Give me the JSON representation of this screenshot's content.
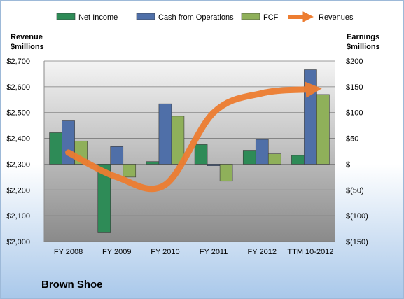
{
  "chart_data": {
    "type": "bar",
    "company": "Brown Shoe",
    "categories": [
      "FY 2008",
      "FY 2009",
      "FY 2010",
      "FY 2011",
      "FY 2012",
      "TTM 10-2012"
    ],
    "left_axis": {
      "title_line1": "Revenue",
      "title_line2": "$millions",
      "ylim": [
        2000,
        2700
      ],
      "ticks": [
        "$2,000",
        "$2,100",
        "$2,200",
        "$2,300",
        "$2,400",
        "$2,500",
        "$2,600",
        "$2,700"
      ]
    },
    "right_axis": {
      "title_line1": "Earnings",
      "title_line2": "$millions",
      "ylim": [
        -150,
        200
      ],
      "ticks": [
        "$(150)",
        "$(100)",
        "$(50)",
        "$-",
        "$50",
        "$100",
        "$150",
        "$200"
      ]
    },
    "series": [
      {
        "name": "Net Income",
        "axis": "right",
        "color": "#2e8b57",
        "values": [
          61,
          -133,
          5,
          38,
          27,
          17
        ]
      },
      {
        "name": "Cash from Operations",
        "axis": "right",
        "color": "#4f6fa8",
        "values": [
          84,
          34,
          117,
          -3,
          48,
          183
        ]
      },
      {
        "name": "FCF",
        "axis": "right",
        "color": "#8fb05a",
        "values": [
          45,
          -25,
          93,
          -33,
          20,
          135
        ]
      }
    ],
    "line_series": {
      "name": "Revenues",
      "axis": "left",
      "color": "#ed7d31",
      "values": [
        2345,
        2250,
        2220,
        2500,
        2575,
        2590
      ]
    },
    "legend": [
      "Net Income",
      "Cash from Operations",
      "FCF",
      "Revenues"
    ],
    "grid": true,
    "legend_position": "top"
  }
}
